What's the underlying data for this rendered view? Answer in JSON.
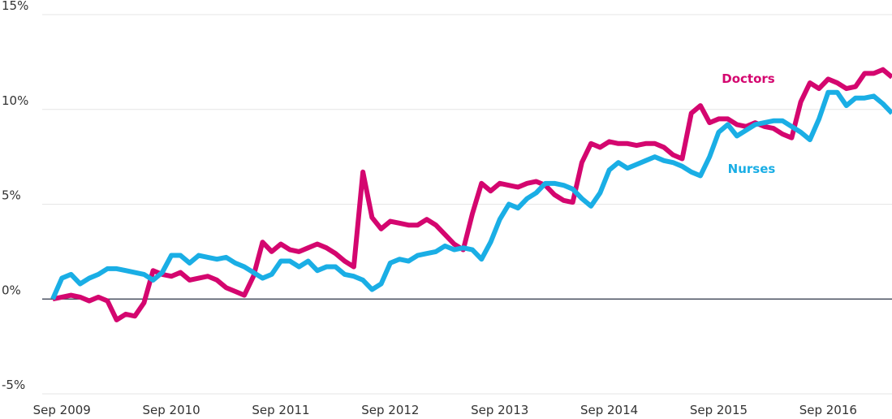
{
  "chart_data": {
    "type": "line",
    "categories": [
      null,
      "Sep 2009",
      null,
      null,
      null,
      null,
      null,
      null,
      null,
      null,
      null,
      null,
      null,
      "Sep 2010",
      null,
      null,
      null,
      null,
      null,
      null,
      null,
      null,
      null,
      null,
      null,
      "Sep 2011",
      null,
      null,
      null,
      null,
      null,
      null,
      null,
      null,
      null,
      null,
      null,
      "Sep 2012",
      null,
      null,
      null,
      null,
      null,
      null,
      null,
      null,
      null,
      null,
      null,
      "Sep 2013",
      null,
      null,
      null,
      null,
      null,
      null,
      null,
      null,
      null,
      null,
      null,
      "Sep 2014",
      null,
      null,
      null,
      null,
      null,
      null,
      null,
      null,
      null,
      null,
      null,
      "Sep 2015",
      null,
      null,
      null,
      null,
      null,
      null,
      null,
      null,
      null,
      null,
      null,
      "Sep 2016",
      null,
      null,
      null,
      null,
      null,
      null,
      null
    ],
    "series": [
      {
        "name": "Doctors",
        "color": "#d4066f",
        "values": [
          0,
          0.1,
          0.2,
          0.1,
          -0.1,
          0.1,
          -0.1,
          -1.1,
          -0.8,
          -0.9,
          -0.2,
          1.5,
          1.3,
          1.2,
          1.4,
          1.0,
          1.1,
          1.2,
          1.0,
          0.6,
          0.4,
          0.2,
          1.2,
          3.0,
          2.5,
          2.9,
          2.6,
          2.5,
          2.7,
          2.9,
          2.7,
          2.4,
          2.0,
          1.7,
          6.7,
          4.3,
          3.7,
          4.1,
          4.0,
          3.9,
          3.9,
          4.2,
          3.9,
          3.4,
          2.9,
          2.6,
          4.5,
          6.1,
          5.7,
          6.1,
          6.0,
          5.9,
          6.1,
          6.2,
          6.0,
          5.5,
          5.2,
          5.1,
          7.2,
          8.2,
          8.0,
          8.3,
          8.2,
          8.2,
          8.1,
          8.2,
          8.2,
          8.0,
          7.6,
          7.4,
          9.8,
          10.2,
          9.3,
          9.5,
          9.5,
          9.2,
          9.1,
          9.3,
          9.1,
          9.0,
          8.7,
          8.5,
          10.4,
          11.4,
          11.1,
          11.6,
          11.4,
          11.1,
          11.2,
          11.9,
          11.9,
          12.1,
          11.7
        ]
      },
      {
        "name": "Nurses",
        "color": "#1aaee5",
        "values": [
          0,
          1.1,
          1.3,
          0.8,
          1.1,
          1.3,
          1.6,
          1.6,
          1.5,
          1.4,
          1.3,
          1.0,
          1.4,
          2.3,
          2.3,
          1.9,
          2.3,
          2.2,
          2.1,
          2.2,
          1.9,
          1.7,
          1.4,
          1.1,
          1.3,
          2.0,
          2.0,
          1.7,
          2.0,
          1.5,
          1.7,
          1.7,
          1.3,
          1.2,
          1.0,
          0.5,
          0.8,
          1.9,
          2.1,
          2.0,
          2.3,
          2.4,
          2.5,
          2.8,
          2.6,
          2.7,
          2.6,
          2.1,
          3.0,
          4.2,
          5.0,
          4.8,
          5.3,
          5.6,
          6.1,
          6.1,
          6.0,
          5.8,
          5.3,
          4.9,
          5.6,
          6.8,
          7.2,
          6.9,
          7.1,
          7.3,
          7.5,
          7.3,
          7.2,
          7.0,
          6.7,
          6.5,
          7.5,
          8.8,
          9.2,
          8.6,
          8.9,
          9.2,
          9.3,
          9.4,
          9.4,
          9.1,
          8.8,
          8.4,
          9.5,
          10.9,
          10.9,
          10.2,
          10.6,
          10.6,
          10.7,
          10.3,
          9.8
        ]
      }
    ],
    "ylim": [
      -5,
      15
    ],
    "yticks": [
      {
        "value": -5,
        "label": "-5%"
      },
      {
        "value": 0,
        "label": "0%"
      },
      {
        "value": 5,
        "label": "5%"
      },
      {
        "value": 10,
        "label": "10%"
      },
      {
        "value": 15,
        "label": "15%"
      }
    ],
    "grid": true
  }
}
